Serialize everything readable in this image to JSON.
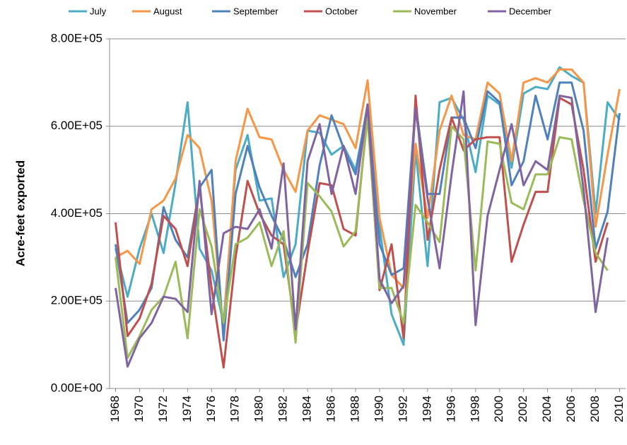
{
  "chart_data": {
    "type": "line",
    "y_label": "Acre-feet exported",
    "x": [
      1968,
      1969,
      1970,
      1971,
      1972,
      1973,
      1974,
      1975,
      1976,
      1977,
      1978,
      1979,
      1980,
      1981,
      1982,
      1983,
      1984,
      1985,
      1986,
      1987,
      1988,
      1989,
      1990,
      1991,
      1992,
      1993,
      1994,
      1995,
      1996,
      1997,
      1998,
      1999,
      2000,
      2001,
      2002,
      2003,
      2004,
      2005,
      2006,
      2007,
      2008,
      2009,
      2010
    ],
    "xlim": [
      1967.5,
      2010.5
    ],
    "xticks": [
      1968,
      1970,
      1972,
      1974,
      1976,
      1978,
      1980,
      1982,
      1984,
      1986,
      1988,
      1990,
      1992,
      1994,
      1996,
      1998,
      2000,
      2002,
      2004,
      2006,
      2008,
      2010
    ],
    "ylim": [
      0,
      800000
    ],
    "yticks": [
      {
        "value": 0,
        "label": "0.00E+00"
      },
      {
        "value": 200000,
        "label": "2.00E+05"
      },
      {
        "value": 400000,
        "label": "4.00E+05"
      },
      {
        "value": 600000,
        "label": "6.00E+05"
      },
      {
        "value": 800000,
        "label": "8.00E+05"
      }
    ],
    "grid": true,
    "legend": "top",
    "series": [
      {
        "name": "July",
        "color": "#4bacc6",
        "values": [
          320000,
          210000,
          320000,
          400000,
          310000,
          470000,
          655000,
          320000,
          270000,
          150000,
          500000,
          580000,
          430000,
          435000,
          255000,
          330000,
          590000,
          585000,
          535000,
          555000,
          500000,
          640000,
          370000,
          170000,
          100000,
          545000,
          280000,
          655000,
          665000,
          615000,
          495000,
          670000,
          650000,
          505000,
          675000,
          690000,
          685000,
          735000,
          715000,
          700000,
          400000,
          655000,
          615000
        ]
      },
      {
        "name": "August",
        "color": "#f79646",
        "values": [
          300000,
          315000,
          285000,
          410000,
          430000,
          480000,
          580000,
          550000,
          430000,
          130000,
          520000,
          640000,
          575000,
          570000,
          500000,
          450000,
          590000,
          625000,
          615000,
          605000,
          550000,
          705000,
          390000,
          260000,
          230000,
          560000,
          390000,
          590000,
          670000,
          580000,
          570000,
          700000,
          675000,
          520000,
          700000,
          710000,
          700000,
          730000,
          730000,
          700000,
          370000,
          535000,
          685000
        ]
      },
      {
        "name": "September",
        "color": "#4f81bd",
        "values": [
          330000,
          150000,
          180000,
          230000,
          415000,
          340000,
          300000,
          460000,
          500000,
          110000,
          445000,
          555000,
          460000,
          395000,
          340000,
          255000,
          330000,
          510000,
          625000,
          550000,
          490000,
          650000,
          330000,
          260000,
          275000,
          650000,
          445000,
          445000,
          620000,
          620000,
          550000,
          680000,
          655000,
          465000,
          520000,
          670000,
          570000,
          700000,
          700000,
          590000,
          320000,
          405000,
          630000
        ]
      },
      {
        "name": "October",
        "color": "#c0504d",
        "values": [
          380000,
          120000,
          160000,
          240000,
          395000,
          365000,
          280000,
          460000,
          230000,
          48000,
          300000,
          475000,
          400000,
          350000,
          330000,
          130000,
          310000,
          470000,
          465000,
          365000,
          350000,
          630000,
          225000,
          330000,
          115000,
          670000,
          340000,
          500000,
          620000,
          545000,
          570000,
          575000,
          575000,
          290000,
          375000,
          450000,
          450000,
          665000,
          650000,
          500000,
          290000,
          380000,
          null
        ]
      },
      {
        "name": "November",
        "color": "#9bbb59",
        "values": [
          300000,
          70000,
          120000,
          180000,
          210000,
          290000,
          115000,
          410000,
          325000,
          150000,
          330000,
          345000,
          380000,
          280000,
          360000,
          105000,
          470000,
          440000,
          405000,
          325000,
          360000,
          620000,
          230000,
          230000,
          150000,
          420000,
          380000,
          335000,
          600000,
          570000,
          270000,
          565000,
          560000,
          425000,
          410000,
          490000,
          490000,
          575000,
          570000,
          430000,
          310000,
          270000,
          null
        ]
      },
      {
        "name": "December",
        "color": "#8064a2",
        "values": [
          230000,
          50000,
          115000,
          150000,
          210000,
          205000,
          175000,
          475000,
          170000,
          355000,
          370000,
          365000,
          410000,
          320000,
          515000,
          135000,
          520000,
          605000,
          445000,
          555000,
          445000,
          650000,
          250000,
          195000,
          235000,
          640000,
          435000,
          275000,
          490000,
          680000,
          145000,
          395000,
          500000,
          605000,
          465000,
          520000,
          500000,
          670000,
          665000,
          455000,
          175000,
          345000,
          null
        ]
      }
    ]
  }
}
